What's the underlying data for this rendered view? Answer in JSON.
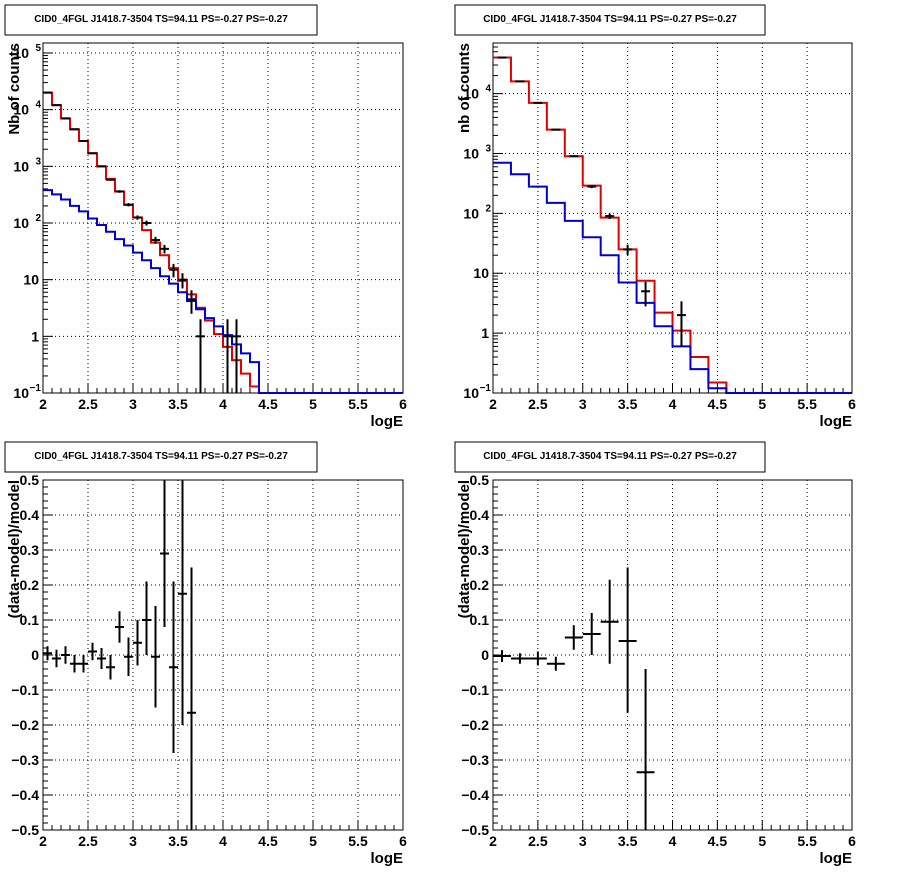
{
  "colors": {
    "data": "#000000",
    "model_total": "#e00000",
    "model_component": "#0000d0",
    "grid": "#000000",
    "background": "#ffffff"
  },
  "chart_data": [
    {
      "type": "histogram",
      "title": "CID0_4FGL J1418.7-3504 TS=94.11 PS=-0.27 PS=-0.27",
      "xlabel": "logE",
      "ylabel": "Nb of counts",
      "xlim": [
        2,
        6
      ],
      "ylim": [
        0.1,
        150000
      ],
      "yscale": "log",
      "grid": true,
      "x_ticks": [
        "2",
        "2.5",
        "3",
        "3.5",
        "4",
        "4.5",
        "5",
        "5.5",
        "6"
      ],
      "y_ticks": [
        {
          "v": 0.1,
          "m": "10",
          "e": "−1"
        },
        {
          "v": 1,
          "m": "1",
          "e": ""
        },
        {
          "v": 10,
          "m": "10",
          "e": ""
        },
        {
          "v": 100,
          "m": "10",
          "e": "2"
        },
        {
          "v": 1000,
          "m": "10",
          "e": "3"
        },
        {
          "v": 10000,
          "m": "10",
          "e": "4"
        },
        {
          "v": 100000,
          "m": "10",
          "e": "5"
        }
      ],
      "bin_edges": [
        2.0,
        2.1,
        2.2,
        2.3,
        2.4,
        2.5,
        2.6,
        2.7,
        2.8,
        2.9,
        3.0,
        3.1,
        3.2,
        3.3,
        3.4,
        3.5,
        3.6,
        3.7,
        3.8,
        3.9,
        4.0,
        4.1,
        4.2,
        4.3,
        4.4,
        4.5,
        4.6,
        4.7,
        4.8,
        4.9,
        5.0,
        5.1,
        5.2,
        5.3,
        5.4,
        5.5,
        5.6,
        5.7,
        5.8,
        5.9,
        6.0
      ],
      "series": [
        {
          "name": "model",
          "color": "#e00000",
          "values": [
            20000,
            12000,
            7000,
            4500,
            2800,
            1700,
            1000,
            600,
            360,
            210,
            125,
            75,
            45,
            27,
            16,
            9.5,
            5.5,
            3.2,
            1.9,
            1.1,
            0.65,
            0.38,
            0.22,
            0.13,
            0.1,
            0.1,
            0.1,
            0.1,
            0.1,
            0.1,
            0.1,
            0.1,
            0.1,
            0.1,
            0.1,
            0.1,
            0.1,
            0.1,
            0.1,
            0.1
          ]
        },
        {
          "name": "component",
          "color": "#0000d0",
          "values": [
            380,
            320,
            260,
            200,
            160,
            120,
            92,
            70,
            52,
            40,
            30,
            22,
            16,
            11.5,
            8.5,
            6,
            4.2,
            3,
            2.1,
            1.5,
            1.05,
            0.72,
            0.5,
            0.35,
            0.1,
            0.1,
            0.1,
            0.1,
            0.1,
            0.1,
            0.1,
            0.1,
            0.1,
            0.1,
            0.1,
            0.1,
            0.1,
            0.1,
            0.1,
            0.1
          ]
        }
      ],
      "points": [
        {
          "x": 2.05,
          "y": 20000,
          "ylo": 19860,
          "yhi": 20140
        },
        {
          "x": 2.15,
          "y": 12000,
          "ylo": 11890,
          "yhi": 12110
        },
        {
          "x": 2.25,
          "y": 7000,
          "ylo": 6916,
          "yhi": 7084
        },
        {
          "x": 2.35,
          "y": 4500,
          "ylo": 4433,
          "yhi": 4567
        },
        {
          "x": 2.45,
          "y": 2800,
          "ylo": 2747,
          "yhi": 2853
        },
        {
          "x": 2.55,
          "y": 1700,
          "ylo": 1659,
          "yhi": 1741
        },
        {
          "x": 2.65,
          "y": 1000,
          "ylo": 968,
          "yhi": 1032
        },
        {
          "x": 2.75,
          "y": 580,
          "ylo": 556,
          "yhi": 604
        },
        {
          "x": 2.85,
          "y": 360,
          "ylo": 341,
          "yhi": 379
        },
        {
          "x": 2.95,
          "y": 210,
          "ylo": 196,
          "yhi": 224
        },
        {
          "x": 3.05,
          "y": 125,
          "ylo": 114,
          "yhi": 136
        },
        {
          "x": 3.15,
          "y": 100,
          "ylo": 90,
          "yhi": 110
        },
        {
          "x": 3.25,
          "y": 50,
          "ylo": 43,
          "yhi": 57
        },
        {
          "x": 3.35,
          "y": 35,
          "ylo": 29,
          "yhi": 41
        },
        {
          "x": 3.45,
          "y": 15,
          "ylo": 11,
          "yhi": 19
        },
        {
          "x": 3.55,
          "y": 10,
          "ylo": 7,
          "yhi": 13
        },
        {
          "x": 3.65,
          "y": 4.5,
          "ylo": 2.5,
          "yhi": 6.5
        },
        {
          "x": 3.75,
          "y": 1,
          "ylo": 0.1,
          "yhi": 2
        },
        {
          "x": 4.05,
          "y": 1,
          "ylo": 0.1,
          "yhi": 2
        },
        {
          "x": 4.15,
          "y": 1,
          "ylo": 0.1,
          "yhi": 2
        }
      ]
    },
    {
      "type": "histogram",
      "title": "CID0_4FGL J1418.7-3504 TS=94.11 PS=-0.27 PS=-0.27",
      "xlabel": "logE",
      "ylabel": "nb of counts",
      "xlim": [
        2,
        6
      ],
      "ylim": [
        0.1,
        70000
      ],
      "yscale": "log",
      "grid": true,
      "x_ticks": [
        "2",
        "2.5",
        "3",
        "3.5",
        "4",
        "4.5",
        "5",
        "5.5",
        "6"
      ],
      "y_ticks": [
        {
          "v": 0.1,
          "m": "10",
          "e": "−1"
        },
        {
          "v": 1,
          "m": "1",
          "e": ""
        },
        {
          "v": 10,
          "m": "10",
          "e": ""
        },
        {
          "v": 100,
          "m": "10",
          "e": "2"
        },
        {
          "v": 1000,
          "m": "10",
          "e": "3"
        },
        {
          "v": 10000,
          "m": "10",
          "e": "4"
        }
      ],
      "bin_edges": [
        2.0,
        2.2,
        2.4,
        2.6,
        2.8,
        3.0,
        3.2,
        3.4,
        3.6,
        3.8,
        4.0,
        4.2,
        4.4,
        4.6,
        4.8,
        5.0,
        5.2,
        5.4,
        5.6,
        5.8,
        6.0
      ],
      "series": [
        {
          "name": "model",
          "color": "#e00000",
          "values": [
            40000,
            16000,
            7000,
            2500,
            900,
            290,
            85,
            25,
            7.5,
            2.2,
            1.1,
            0.4,
            0.15,
            0.1,
            0.1,
            0.1,
            0.1,
            0.1,
            0.1,
            0.1
          ]
        },
        {
          "name": "component",
          "color": "#0000d0",
          "values": [
            700,
            450,
            280,
            150,
            75,
            40,
            20,
            7,
            3.2,
            1.3,
            0.6,
            0.25,
            0.12,
            0.1,
            0.1,
            0.1,
            0.1,
            0.1,
            0.1,
            0.1
          ]
        }
      ],
      "points": [
        {
          "x": 2.1,
          "y": 40000,
          "ylo": 39800,
          "yhi": 40200
        },
        {
          "x": 2.3,
          "y": 16000,
          "ylo": 15870,
          "yhi": 16130
        },
        {
          "x": 2.5,
          "y": 7000,
          "ylo": 6916,
          "yhi": 7084
        },
        {
          "x": 2.7,
          "y": 2500,
          "ylo": 2450,
          "yhi": 2550
        },
        {
          "x": 2.9,
          "y": 900,
          "ylo": 870,
          "yhi": 930
        },
        {
          "x": 3.1,
          "y": 280,
          "ylo": 263,
          "yhi": 297
        },
        {
          "x": 3.3,
          "y": 90,
          "ylo": 80.5,
          "yhi": 99.5
        },
        {
          "x": 3.5,
          "y": 25,
          "ylo": 20,
          "yhi": 30
        },
        {
          "x": 3.7,
          "y": 5,
          "ylo": 2.8,
          "yhi": 7.2
        },
        {
          "x": 4.1,
          "y": 2,
          "ylo": 0.6,
          "yhi": 3.4
        }
      ]
    },
    {
      "type": "scatter",
      "title": "CID0_4FGL J1418.7-3504 TS=94.11 PS=-0.27 PS=-0.27",
      "xlabel": "logE",
      "ylabel": "(data-model)/model",
      "xlim": [
        2,
        6
      ],
      "ylim": [
        -0.5,
        0.5
      ],
      "yscale": "linear",
      "grid": true,
      "x_ticks": [
        "2",
        "2.5",
        "3",
        "3.5",
        "4",
        "4.5",
        "5",
        "5.5",
        "6"
      ],
      "y_ticks": [
        "−0.5",
        "−0.4",
        "−0.3",
        "−0.2",
        "−0.1",
        "0",
        "0.1",
        "0.2",
        "0.3",
        "0.4",
        "0.5"
      ],
      "points": [
        {
          "x": 2.05,
          "y": 0.005,
          "ylo": -0.015,
          "yhi": 0.025,
          "xerr": 0.05
        },
        {
          "x": 2.15,
          "y": -0.01,
          "ylo": -0.035,
          "yhi": 0.015,
          "xerr": 0.05
        },
        {
          "x": 2.25,
          "y": 0.0,
          "ylo": -0.025,
          "yhi": 0.025,
          "xerr": 0.05
        },
        {
          "x": 2.35,
          "y": -0.025,
          "ylo": -0.05,
          "yhi": 0.0,
          "xerr": 0.05
        },
        {
          "x": 2.45,
          "y": -0.025,
          "ylo": -0.05,
          "yhi": 0.0,
          "xerr": 0.05
        },
        {
          "x": 2.55,
          "y": 0.01,
          "ylo": -0.015,
          "yhi": 0.035,
          "xerr": 0.05
        },
        {
          "x": 2.65,
          "y": -0.01,
          "ylo": -0.04,
          "yhi": 0.02,
          "xerr": 0.05
        },
        {
          "x": 2.75,
          "y": -0.035,
          "ylo": -0.07,
          "yhi": 0.0,
          "xerr": 0.05
        },
        {
          "x": 2.85,
          "y": 0.08,
          "ylo": 0.035,
          "yhi": 0.125,
          "xerr": 0.05
        },
        {
          "x": 2.95,
          "y": -0.005,
          "ylo": -0.06,
          "yhi": 0.05,
          "xerr": 0.05
        },
        {
          "x": 3.05,
          "y": 0.035,
          "ylo": -0.03,
          "yhi": 0.1,
          "xerr": 0.05
        },
        {
          "x": 3.15,
          "y": 0.1,
          "ylo": 0.0,
          "yhi": 0.21,
          "xerr": 0.05
        },
        {
          "x": 3.25,
          "y": -0.005,
          "ylo": -0.15,
          "yhi": 0.14,
          "xerr": 0.05
        },
        {
          "x": 3.35,
          "y": 0.29,
          "ylo": 0.08,
          "yhi": 0.5,
          "xerr": 0.05
        },
        {
          "x": 3.45,
          "y": -0.035,
          "ylo": -0.28,
          "yhi": 0.21,
          "xerr": 0.05
        },
        {
          "x": 3.55,
          "y": 0.175,
          "ylo": -0.2,
          "yhi": 0.5,
          "xerr": 0.05
        },
        {
          "x": 3.65,
          "y": -0.165,
          "ylo": -0.5,
          "yhi": 0.25,
          "xerr": 0.05
        }
      ]
    },
    {
      "type": "scatter",
      "title": "CID0_4FGL J1418.7-3504 TS=94.11 PS=-0.27 PS=-0.27",
      "xlabel": "logE",
      "ylabel": "(data-model)/model",
      "xlim": [
        2,
        6
      ],
      "ylim": [
        -0.5,
        0.5
      ],
      "yscale": "linear",
      "grid": true,
      "x_ticks": [
        "2",
        "2.5",
        "3",
        "3.5",
        "4",
        "4.5",
        "5",
        "5.5",
        "6"
      ],
      "y_ticks": [
        "−0.5",
        "−0.4",
        "−0.3",
        "−0.2",
        "−0.1",
        "0",
        "0.1",
        "0.2",
        "0.3",
        "0.4",
        "0.5"
      ],
      "points": [
        {
          "x": 2.1,
          "y": -0.003,
          "ylo": -0.02,
          "yhi": 0.014,
          "xerr": 0.1
        },
        {
          "x": 2.3,
          "y": -0.01,
          "ylo": -0.025,
          "yhi": 0.005,
          "xerr": 0.1
        },
        {
          "x": 2.5,
          "y": -0.01,
          "ylo": -0.03,
          "yhi": 0.01,
          "xerr": 0.1
        },
        {
          "x": 2.7,
          "y": -0.025,
          "ylo": -0.045,
          "yhi": -0.005,
          "xerr": 0.1
        },
        {
          "x": 2.9,
          "y": 0.05,
          "ylo": 0.015,
          "yhi": 0.085,
          "xerr": 0.1
        },
        {
          "x": 3.1,
          "y": 0.06,
          "ylo": 0.0,
          "yhi": 0.12,
          "xerr": 0.1
        },
        {
          "x": 3.3,
          "y": 0.095,
          "ylo": -0.025,
          "yhi": 0.215,
          "xerr": 0.1
        },
        {
          "x": 3.5,
          "y": 0.04,
          "ylo": -0.165,
          "yhi": 0.25,
          "xerr": 0.1
        },
        {
          "x": 3.7,
          "y": -0.335,
          "ylo": -0.5,
          "yhi": -0.04,
          "xerr": 0.1
        }
      ]
    }
  ]
}
